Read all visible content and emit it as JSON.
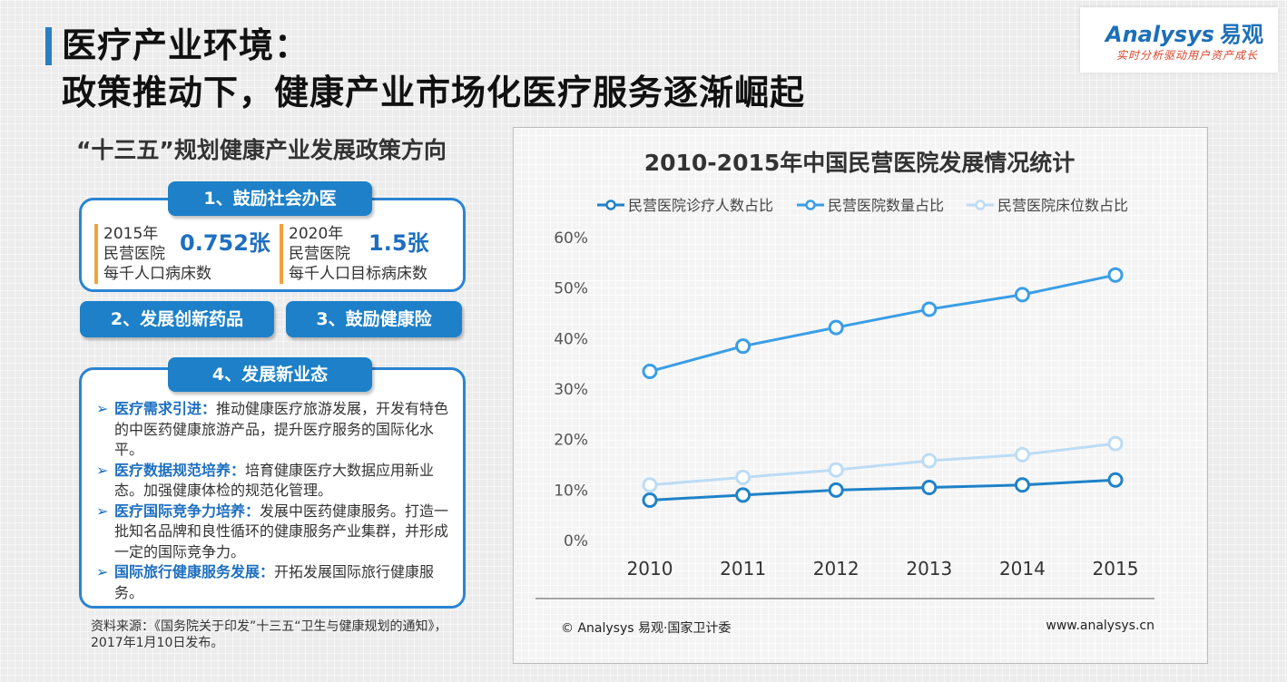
{
  "header": {
    "title_line1": "医疗产业环境：",
    "title_line2": "政策推动下，健康产业市场化医疗服务逐渐崛起"
  },
  "logo": {
    "brand": "Analysys",
    "brand_cn": "易观",
    "tagline": "实时分析驱动用户资产成长"
  },
  "policy": {
    "section_title": "“十三五”规划健康产业发展政策方向",
    "item1": {
      "label": "1、鼓励社会办医",
      "stat1": {
        "year": "2015年",
        "line2": "民营医院",
        "value": "0.752张",
        "line3": "每千人口病床数"
      },
      "stat2": {
        "year": "2020年",
        "line2": "民营医院",
        "value": "1.5张",
        "line3": "每千人口目标病床数"
      }
    },
    "item2": {
      "label": "2、发展创新药品"
    },
    "item3": {
      "label": "3、鼓励健康险"
    },
    "item4": {
      "label": "4、发展新业态",
      "bullets": [
        {
          "lead": "医疗需求引进：",
          "text": "推动健康医疗旅游发展，开发有特色的中医药健康旅游产品，提升医疗服务的国际化水平。"
        },
        {
          "lead": "医疗数据规范培养：",
          "text": "培育健康医疗大数据应用新业态。加强健康体检的规范化管理。"
        },
        {
          "lead": "医疗国际竞争力培养：",
          "text": "发展中医药健康服务。打造一批知名品牌和良性循环的健康服务产业集群，并形成一定的国际竞争力。"
        },
        {
          "lead": "国际旅行健康服务发展：",
          "text": "开拓发展国际旅行健康服务。"
        }
      ]
    },
    "source": "资料来源：《国务院关于印发”十三五“卫生与健康规划的通知》，2017年1月10日发布。"
  },
  "chart_data": {
    "type": "line",
    "title": "2010-2015年中国民营医院发展情况统计",
    "x": [
      "2010",
      "2011",
      "2012",
      "2013",
      "2014",
      "2015"
    ],
    "series": [
      {
        "name": "民营医院诊疗人数占比",
        "color": "#1f82c8",
        "values": [
          8.0,
          9.0,
          10.0,
          10.5,
          11.0,
          12.0
        ]
      },
      {
        "name": "民营医院数量占比",
        "color": "#3a9ee6",
        "values": [
          33.5,
          38.5,
          42.2,
          45.8,
          48.7,
          52.6
        ]
      },
      {
        "name": "民营医院床位数占比",
        "color": "#bcdcf5",
        "values": [
          11.0,
          12.5,
          14.0,
          15.8,
          17.0,
          19.2
        ]
      }
    ],
    "yticks": [
      "0%",
      "10%",
      "20%",
      "30%",
      "40%",
      "50%",
      "60%"
    ],
    "ylim": [
      0,
      60
    ],
    "grid": false,
    "legend_position": "top",
    "footer_left": "© Analysys 易观·国家卫计委",
    "footer_right": "www.analysys.cn"
  }
}
